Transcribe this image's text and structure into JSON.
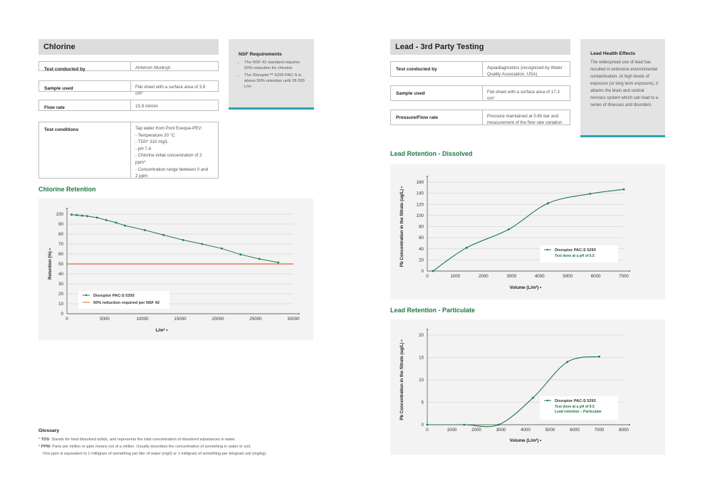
{
  "chlorine": {
    "title": "Chlorine",
    "rows": [
      {
        "label": "Test conducted by",
        "value": "Ahlstrom Munksjö"
      },
      {
        "label": "Sample used",
        "value": "Flat sheet with a surface area of 3.9 cm²"
      },
      {
        "label": "Flow rate",
        "value": "15.9 ml/min"
      },
      {
        "label": "Test conditions",
        "lines": [
          "Tap water from Pont Eveque-PEV:",
          "- Temperature 20 °C",
          "- TDS* 310 mg/L",
          "- pH 7.4",
          "- Chlorine initial concentration of 2",
          "ppm*",
          "- Concentration range between 0 and",
          "2 ppm"
        ]
      }
    ]
  },
  "nsf": {
    "title": "NSF Requirements",
    "bullets": [
      "The NSF 42 standard requires 50% reduction for chlorine",
      "The Disruptor™ 5293 PAC-S is above 50% retention until 28 000 L/m"
    ]
  },
  "lead": {
    "title": "Lead - 3rd Party Testing",
    "rows": [
      {
        "label": "Test conducted by",
        "value": "Aquadiagnostics (recognised by Water Quality Association, USA)"
      },
      {
        "label": "Sample used",
        "value": "Flat sheet with a surface area of 17.3 cm²"
      },
      {
        "label": "Pressure/Flow rate",
        "value": "Pressure maintained at 0.65 bar and measurement of the flow rate variation"
      }
    ]
  },
  "health": {
    "title": "Lead Health Effects",
    "body": "The widespread use of lead has resulted in extensive environmental contamination. At high levels of exposure (or long term exposure), it attacks the brain and central nervous system which can lead to a series of illnesses and disorders."
  },
  "glossary": {
    "title": "Glossary",
    "items": [
      {
        "term": "TDS:",
        "text": " Stands for total dissolved solids, and represents the total concentration of dissolved substances in water."
      },
      {
        "term": "PPM:",
        "text": " Parts per million or ppm means out of a million. Usually describes the concentration of something in water or soil."
      }
    ],
    "extra": "One ppm is equivalent to 1 milligram of something per liter of water (mg/l) or 1 milligram of something per kilogram soil (mg/kg)."
  },
  "chart_data": [
    {
      "type": "line",
      "title": "Chlorine Retention",
      "xlabel": "L/m²",
      "ylabel": "Retention (%)",
      "xlim": [
        0,
        30000
      ],
      "ylim": [
        0,
        100
      ],
      "xticks": [
        0,
        5000,
        10000,
        15000,
        20000,
        25000,
        30000
      ],
      "yticks": [
        0,
        10,
        20,
        30,
        40,
        50,
        60,
        70,
        80,
        90,
        100
      ],
      "grid": true,
      "legend_position": "bottom-left",
      "series": [
        {
          "name": "Disruptor PAC-S 5293",
          "color": "#1f7a44",
          "marker": true,
          "x": [
            600,
            1300,
            2000,
            2700,
            4000,
            5200,
            6500,
            7700,
            10300,
            12800,
            15400,
            17900,
            20500,
            23000,
            25500,
            28000
          ],
          "y": [
            99.5,
            99,
            98.5,
            98,
            96.5,
            94,
            91.5,
            88.5,
            84,
            79,
            74,
            70,
            65.5,
            59.5,
            55,
            51.5
          ]
        },
        {
          "name": "50% reduction required per NSF 42",
          "color": "#e0652f",
          "marker": false,
          "x": [
            0,
            30000
          ],
          "y": [
            50,
            50
          ]
        }
      ]
    },
    {
      "type": "line",
      "title": "Lead Retention - Dissolved",
      "xlabel": "Volume (L/m²)",
      "ylabel": "Pb Concentration in the filtrate (ug/L)",
      "xlim": [
        0,
        7000
      ],
      "ylim": [
        0,
        160
      ],
      "xticks": [
        0,
        1000,
        2000,
        3000,
        4000,
        5000,
        6000,
        7000
      ],
      "yticks": [
        0,
        20,
        40,
        60,
        80,
        100,
        120,
        140,
        160
      ],
      "grid": true,
      "legend_position": "bottom-right",
      "legend_note": "Test done at a pH of 6.5",
      "series": [
        {
          "name": "Disruptor PAC-S 5293",
          "color": "#1f7a44",
          "marker": true,
          "x": [
            200,
            1400,
            2900,
            4300,
            5800,
            7000
          ],
          "y": [
            0,
            42,
            75,
            122,
            139,
            147
          ]
        }
      ]
    },
    {
      "type": "line",
      "title": "Lead Retention - Particulate",
      "xlabel": "Volume (L/m²)",
      "ylabel": "Pb Concentration in the filtrate (ug/L)",
      "xlim": [
        0,
        8000
      ],
      "ylim": [
        0,
        20
      ],
      "xticks": [
        0,
        1000,
        2000,
        3000,
        4000,
        5000,
        6000,
        7000,
        8000
      ],
      "yticks": [
        0,
        5,
        10,
        15,
        20
      ],
      "grid": true,
      "legend_position": "bottom-right",
      "legend_note": "Test done at a pH of 8.5",
      "legend_note2": "Lead retention – Particulate",
      "series": [
        {
          "name": "Disruptor PAC-S 5293",
          "color": "#1f7a44",
          "marker": true,
          "x": [
            0,
            1500,
            2900,
            4300,
            5700,
            7000
          ],
          "y": [
            0,
            0,
            0,
            6,
            14,
            15.2
          ]
        }
      ]
    }
  ]
}
